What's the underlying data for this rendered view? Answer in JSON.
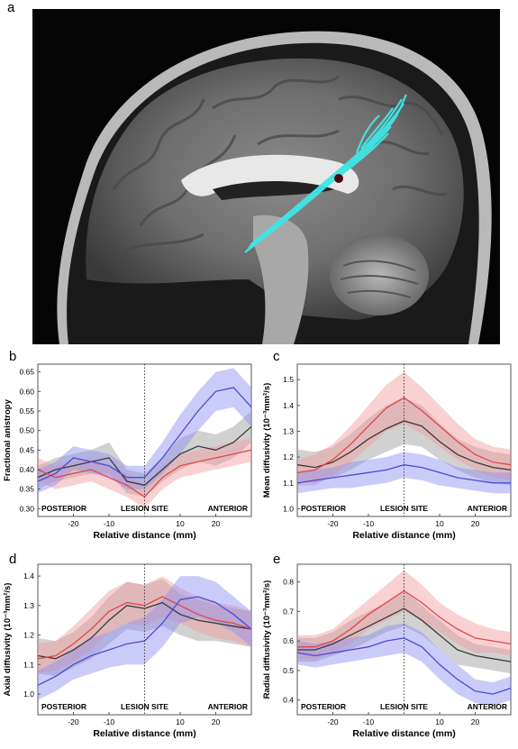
{
  "panels": {
    "a": "a",
    "b": "b",
    "c": "c",
    "d": "d",
    "e": "e"
  },
  "colors": {
    "black_series": "#3a3a3a",
    "red_series": "#e0474c",
    "blue_series": "#4b4bd6",
    "black_band": "#9a9a9a",
    "red_band": "#f19a9c",
    "blue_band": "#8c8cf2",
    "tract": "#3fe6e6"
  },
  "chart_data": [
    {
      "id": "b",
      "type": "line",
      "ylabel": "Fractional anistropy",
      "xlabel": "Relative distance (mm)",
      "ylim": [
        0.28,
        0.67
      ],
      "xlim": [
        -30,
        30
      ],
      "yticks": [
        "0.30",
        "0.35",
        "0.40",
        "0.45",
        "0.50",
        "0.55",
        "0.60",
        "0.65"
      ],
      "xticks": [
        "-20",
        "-10",
        "10",
        "20"
      ],
      "annotations": {
        "left": "POSTERIOR",
        "center": "LESION SITE",
        "right": "ANTERIOR"
      },
      "x": [
        -30,
        -25,
        -20,
        -15,
        -10,
        -5,
        0,
        5,
        10,
        15,
        20,
        25,
        30
      ],
      "series": [
        {
          "color": "#3a3a3a",
          "values": [
            0.38,
            0.4,
            0.41,
            0.42,
            0.43,
            0.37,
            0.36,
            0.4,
            0.44,
            0.46,
            0.45,
            0.47,
            0.51
          ],
          "band": [
            0.03,
            0.03,
            0.03,
            0.03,
            0.04,
            0.03,
            0.03,
            0.03,
            0.04,
            0.04,
            0.04,
            0.04,
            0.04
          ]
        },
        {
          "color": "#e0474c",
          "values": [
            0.4,
            0.38,
            0.39,
            0.4,
            0.38,
            0.36,
            0.33,
            0.38,
            0.41,
            0.42,
            0.43,
            0.44,
            0.45
          ],
          "band": [
            0.03,
            0.03,
            0.03,
            0.03,
            0.03,
            0.03,
            0.03,
            0.03,
            0.03,
            0.03,
            0.03,
            0.03,
            0.03
          ]
        },
        {
          "color": "#4b4bd6",
          "values": [
            0.37,
            0.39,
            0.43,
            0.42,
            0.41,
            0.38,
            0.38,
            0.43,
            0.49,
            0.55,
            0.6,
            0.61,
            0.56
          ],
          "band": [
            0.03,
            0.03,
            0.03,
            0.03,
            0.03,
            0.03,
            0.03,
            0.04,
            0.05,
            0.05,
            0.05,
            0.05,
            0.05
          ]
        }
      ]
    },
    {
      "id": "c",
      "type": "line",
      "ylabel": "Mean diffusivity (10⁻³mm²/s)",
      "xlabel": "Relative distance (mm)",
      "ylim": [
        0.97,
        1.56
      ],
      "xlim": [
        -30,
        30
      ],
      "yticks": [
        "1.0",
        "1.1",
        "1.2",
        "1.3",
        "1.4",
        "1.5"
      ],
      "xticks": [
        "-20",
        "-10",
        "10",
        "20"
      ],
      "annotations": {
        "left": "POSTERIOR",
        "center": "LESION SITE",
        "right": "ANTERIOR"
      },
      "x": [
        -30,
        -25,
        -20,
        -15,
        -10,
        -5,
        0,
        5,
        10,
        15,
        20,
        25,
        30
      ],
      "series": [
        {
          "color": "#3a3a3a",
          "values": [
            1.17,
            1.16,
            1.18,
            1.22,
            1.27,
            1.31,
            1.34,
            1.32,
            1.26,
            1.21,
            1.18,
            1.16,
            1.15
          ],
          "band": [
            0.06,
            0.06,
            0.06,
            0.07,
            0.08,
            0.09,
            0.09,
            0.08,
            0.07,
            0.06,
            0.06,
            0.06,
            0.06
          ]
        },
        {
          "color": "#e0474c",
          "values": [
            1.14,
            1.15,
            1.19,
            1.25,
            1.32,
            1.39,
            1.43,
            1.38,
            1.32,
            1.26,
            1.21,
            1.18,
            1.17
          ],
          "band": [
            0.05,
            0.06,
            0.06,
            0.07,
            0.08,
            0.09,
            0.1,
            0.09,
            0.08,
            0.07,
            0.06,
            0.06,
            0.06
          ]
        },
        {
          "color": "#4b4bd6",
          "values": [
            1.1,
            1.11,
            1.12,
            1.13,
            1.14,
            1.15,
            1.17,
            1.16,
            1.14,
            1.12,
            1.11,
            1.1,
            1.1
          ],
          "band": [
            0.04,
            0.04,
            0.04,
            0.05,
            0.05,
            0.05,
            0.05,
            0.05,
            0.05,
            0.04,
            0.04,
            0.04,
            0.04
          ]
        }
      ]
    },
    {
      "id": "d",
      "type": "line",
      "ylabel": "Axial diffusivity (10⁻³mm²/s)",
      "xlabel": "Relative distance (mm)",
      "ylim": [
        0.93,
        1.44
      ],
      "xlim": [
        -30,
        30
      ],
      "yticks": [
        "1.0",
        "1.1",
        "1.2",
        "1.3",
        "1.4"
      ],
      "xticks": [
        "-20",
        "-10",
        "10",
        "20"
      ],
      "annotations": {
        "left": "POSTERIOR",
        "center": "LESION SITE",
        "right": "ANTERIOR"
      },
      "x": [
        -30,
        -25,
        -20,
        -15,
        -10,
        -5,
        0,
        5,
        10,
        15,
        20,
        25,
        30
      ],
      "series": [
        {
          "color": "#3a3a3a",
          "values": [
            1.13,
            1.12,
            1.15,
            1.19,
            1.25,
            1.3,
            1.29,
            1.31,
            1.27,
            1.25,
            1.24,
            1.23,
            1.22
          ],
          "band": [
            0.06,
            0.06,
            0.06,
            0.07,
            0.08,
            0.08,
            0.08,
            0.08,
            0.07,
            0.07,
            0.06,
            0.06,
            0.06
          ]
        },
        {
          "color": "#e0474c",
          "values": [
            1.12,
            1.13,
            1.17,
            1.22,
            1.28,
            1.31,
            1.3,
            1.33,
            1.3,
            1.27,
            1.25,
            1.24,
            1.22
          ],
          "band": [
            0.05,
            0.05,
            0.06,
            0.07,
            0.07,
            0.07,
            0.07,
            0.07,
            0.06,
            0.06,
            0.06,
            0.06,
            0.06
          ]
        },
        {
          "color": "#4b4bd6",
          "values": [
            1.03,
            1.06,
            1.1,
            1.13,
            1.15,
            1.17,
            1.18,
            1.24,
            1.32,
            1.33,
            1.31,
            1.27,
            1.22
          ],
          "band": [
            0.05,
            0.05,
            0.05,
            0.06,
            0.06,
            0.07,
            0.08,
            0.08,
            0.08,
            0.07,
            0.07,
            0.06,
            0.06
          ]
        }
      ]
    },
    {
      "id": "e",
      "type": "line",
      "ylabel": "Radial diffusivity (10⁻³mm²/s)",
      "xlabel": "Relative distance (mm)",
      "ylim": [
        0.35,
        0.86
      ],
      "xlim": [
        -30,
        30
      ],
      "yticks": [
        "0.4",
        "0.5",
        "0.6",
        "0.7",
        "0.8"
      ],
      "xticks": [
        "-20",
        "-10",
        "10",
        "20"
      ],
      "annotations": {
        "left": "POSTERIOR",
        "center": "LESION SITE",
        "right": "ANTERIOR"
      },
      "x": [
        -30,
        -25,
        -20,
        -15,
        -10,
        -5,
        0,
        5,
        10,
        15,
        20,
        25,
        30
      ],
      "series": [
        {
          "color": "#3a3a3a",
          "values": [
            0.57,
            0.57,
            0.59,
            0.62,
            0.65,
            0.68,
            0.71,
            0.67,
            0.62,
            0.57,
            0.55,
            0.54,
            0.53
          ],
          "band": [
            0.04,
            0.04,
            0.04,
            0.05,
            0.05,
            0.05,
            0.06,
            0.05,
            0.05,
            0.05,
            0.04,
            0.04,
            0.04
          ]
        },
        {
          "color": "#e0474c",
          "values": [
            0.58,
            0.58,
            0.6,
            0.64,
            0.69,
            0.73,
            0.77,
            0.73,
            0.68,
            0.64,
            0.61,
            0.6,
            0.59
          ],
          "band": [
            0.04,
            0.04,
            0.04,
            0.05,
            0.05,
            0.06,
            0.07,
            0.06,
            0.05,
            0.05,
            0.05,
            0.04,
            0.04
          ]
        },
        {
          "color": "#4b4bd6",
          "values": [
            0.56,
            0.55,
            0.56,
            0.57,
            0.58,
            0.6,
            0.61,
            0.58,
            0.52,
            0.47,
            0.43,
            0.42,
            0.44
          ],
          "band": [
            0.04,
            0.04,
            0.04,
            0.04,
            0.04,
            0.05,
            0.05,
            0.05,
            0.05,
            0.05,
            0.04,
            0.04,
            0.04
          ]
        }
      ]
    }
  ]
}
